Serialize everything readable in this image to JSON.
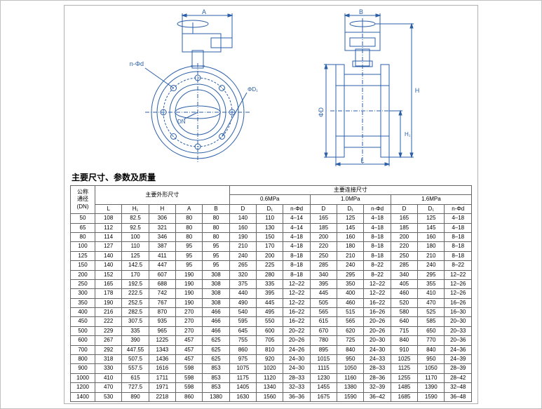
{
  "diagram": {
    "labels": {
      "A": "A",
      "B": "B",
      "nPhiD_left": "n-Φd",
      "phiD1": "ΦD₁",
      "DN": "DN",
      "phiD": "ΦD",
      "H": "H",
      "H1": "H₁",
      "L": "L"
    },
    "colors": {
      "line": "#2b5fa8",
      "bg": "#ffffff",
      "text": "#2b5fa8"
    }
  },
  "title": "主要尺寸、参数及质量",
  "table": {
    "corner_label_l1": "公称",
    "corner_label_l2": "通径",
    "corner_label_l3": "(DN)",
    "group1": "主要外形尺寸",
    "group2": "主要连接尺寸",
    "press": [
      "0.6MPa",
      "1.0MPa",
      "1.6MPa"
    ],
    "shape_cols": [
      "L",
      "H₁",
      "H",
      "A",
      "B"
    ],
    "conn_cols": [
      "D",
      "D₁",
      "n-Φd"
    ],
    "rows": [
      {
        "dn": "50",
        "s": [
          "108",
          "82.5",
          "306",
          "80",
          "80"
        ],
        "c": [
          [
            "140",
            "110",
            "4–14"
          ],
          [
            "165",
            "125",
            "4–18"
          ],
          [
            "165",
            "125",
            "4–18"
          ]
        ]
      },
      {
        "dn": "65",
        "s": [
          "112",
          "92.5",
          "321",
          "80",
          "80"
        ],
        "c": [
          [
            "160",
            "130",
            "4–14"
          ],
          [
            "185",
            "145",
            "4–18"
          ],
          [
            "185",
            "145",
            "4–18"
          ]
        ]
      },
      {
        "dn": "80",
        "s": [
          "114",
          "100",
          "346",
          "80",
          "80"
        ],
        "c": [
          [
            "190",
            "150",
            "4–18"
          ],
          [
            "200",
            "160",
            "8–18"
          ],
          [
            "200",
            "160",
            "8–18"
          ]
        ]
      },
      {
        "dn": "100",
        "s": [
          "127",
          "110",
          "387",
          "95",
          "95"
        ],
        "c": [
          [
            "210",
            "170",
            "4–18"
          ],
          [
            "220",
            "180",
            "8–18"
          ],
          [
            "220",
            "180",
            "8–18"
          ]
        ]
      },
      {
        "dn": "125",
        "s": [
          "140",
          "125",
          "411",
          "95",
          "95"
        ],
        "c": [
          [
            "240",
            "200",
            "8–18"
          ],
          [
            "250",
            "210",
            "8–18"
          ],
          [
            "250",
            "210",
            "8–18"
          ]
        ]
      },
      {
        "dn": "150",
        "s": [
          "140",
          "142.5",
          "447",
          "95",
          "95"
        ],
        "c": [
          [
            "265",
            "225",
            "8–18"
          ],
          [
            "285",
            "240",
            "8–22"
          ],
          [
            "285",
            "240",
            "8–22"
          ]
        ]
      },
      {
        "dn": "200",
        "s": [
          "152",
          "170",
          "607",
          "190",
          "308"
        ],
        "c": [
          [
            "320",
            "280",
            "8–18"
          ],
          [
            "340",
            "295",
            "8–22"
          ],
          [
            "340",
            "295",
            "12–22"
          ]
        ]
      },
      {
        "dn": "250",
        "s": [
          "165",
          "192.5",
          "688",
          "190",
          "308"
        ],
        "c": [
          [
            "375",
            "335",
            "12–22"
          ],
          [
            "395",
            "350",
            "12–22"
          ],
          [
            "405",
            "355",
            "12–26"
          ]
        ]
      },
      {
        "dn": "300",
        "s": [
          "178",
          "222.5",
          "742",
          "190",
          "308"
        ],
        "c": [
          [
            "440",
            "395",
            "12–22"
          ],
          [
            "445",
            "400",
            "12–22"
          ],
          [
            "460",
            "410",
            "12–26"
          ]
        ]
      },
      {
        "dn": "350",
        "s": [
          "190",
          "252.5",
          "767",
          "190",
          "308"
        ],
        "c": [
          [
            "490",
            "445",
            "12–22"
          ],
          [
            "505",
            "460",
            "16–22"
          ],
          [
            "520",
            "470",
            "16–26"
          ]
        ]
      },
      {
        "dn": "400",
        "s": [
          "216",
          "282.5",
          "870",
          "270",
          "466"
        ],
        "c": [
          [
            "540",
            "495",
            "16–22"
          ],
          [
            "565",
            "515",
            "16–26"
          ],
          [
            "580",
            "525",
            "16–30"
          ]
        ]
      },
      {
        "dn": "450",
        "s": [
          "222",
          "307.5",
          "935",
          "270",
          "466"
        ],
        "c": [
          [
            "595",
            "550",
            "16–22"
          ],
          [
            "615",
            "565",
            "20–26"
          ],
          [
            "640",
            "585",
            "20–30"
          ]
        ]
      },
      {
        "dn": "500",
        "s": [
          "229",
          "335",
          "965",
          "270",
          "466"
        ],
        "c": [
          [
            "645",
            "600",
            "20–22"
          ],
          [
            "670",
            "620",
            "20–26"
          ],
          [
            "715",
            "650",
            "20–33"
          ]
        ]
      },
      {
        "dn": "600",
        "s": [
          "267",
          "390",
          "1225",
          "457",
          "625"
        ],
        "c": [
          [
            "755",
            "705",
            "20–26"
          ],
          [
            "780",
            "725",
            "20–30"
          ],
          [
            "840",
            "770",
            "20–36"
          ]
        ]
      },
      {
        "dn": "700",
        "s": [
          "292",
          "447.55",
          "1343",
          "457",
          "625"
        ],
        "c": [
          [
            "860",
            "810",
            "24–26"
          ],
          [
            "895",
            "840",
            "24–30"
          ],
          [
            "910",
            "840",
            "24–36"
          ]
        ]
      },
      {
        "dn": "800",
        "s": [
          "318",
          "507.5",
          "1436",
          "457",
          "625"
        ],
        "c": [
          [
            "975",
            "920",
            "24–30"
          ],
          [
            "1015",
            "950",
            "24–33"
          ],
          [
            "1025",
            "950",
            "24–39"
          ]
        ]
      },
      {
        "dn": "900",
        "s": [
          "330",
          "557.5",
          "1616",
          "598",
          "853"
        ],
        "c": [
          [
            "1075",
            "1020",
            "24–30"
          ],
          [
            "1115",
            "1050",
            "28–33"
          ],
          [
            "1125",
            "1050",
            "28–39"
          ]
        ]
      },
      {
        "dn": "1000",
        "s": [
          "410",
          "615",
          "1711",
          "598",
          "853"
        ],
        "c": [
          [
            "1175",
            "1120",
            "28–33"
          ],
          [
            "1230",
            "1160",
            "28–36"
          ],
          [
            "1255",
            "1170",
            "28–42"
          ]
        ]
      },
      {
        "dn": "1200",
        "s": [
          "470",
          "727.5",
          "1971",
          "598",
          "853"
        ],
        "c": [
          [
            "1405",
            "1340",
            "32–33"
          ],
          [
            "1455",
            "1380",
            "32–39"
          ],
          [
            "1485",
            "1390",
            "32–48"
          ]
        ]
      },
      {
        "dn": "1400",
        "s": [
          "530",
          "890",
          "2218",
          "860",
          "1380"
        ],
        "c": [
          [
            "1630",
            "1560",
            "36–36"
          ],
          [
            "1675",
            "1590",
            "36–42"
          ],
          [
            "1685",
            "1590",
            "36–48"
          ]
        ]
      }
    ]
  }
}
